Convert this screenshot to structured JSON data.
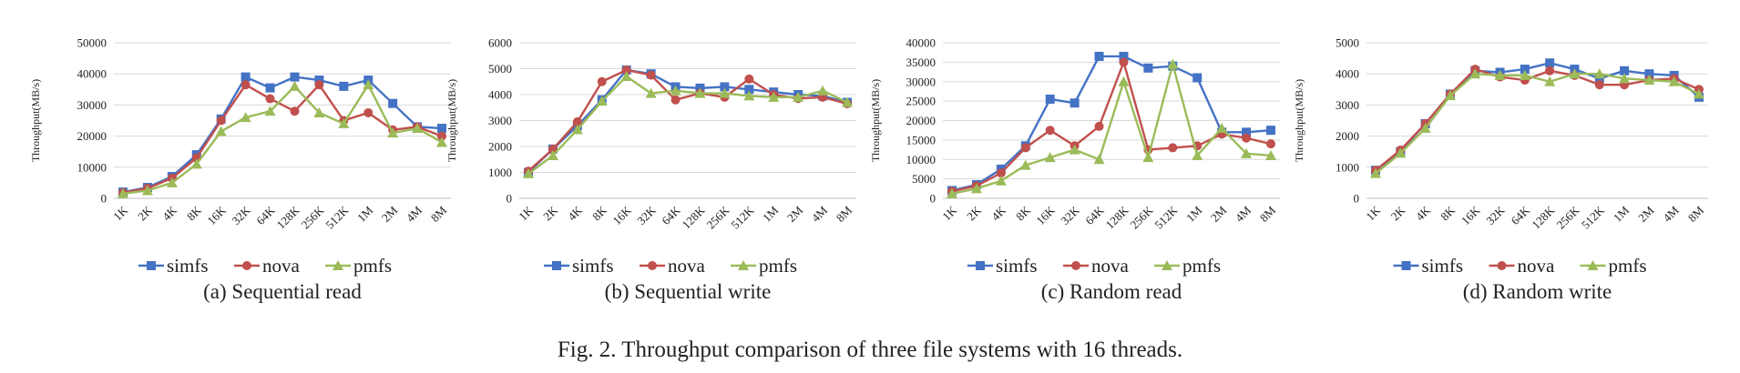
{
  "figure_caption": "Fig. 2.  Throughput comparison of three file systems with 16 threads.",
  "colors": {
    "simfs": "#4472c4",
    "nova": "#c0504d",
    "pmfs": "#9bbb59",
    "grid": "#d9d9d9",
    "axis": "#bfbfbf"
  },
  "chart_data": [
    {
      "type": "line",
      "caption": "(a)  Sequential read",
      "ylabel": "Throughput(MB/s)",
      "categories": [
        "1K",
        "2K",
        "4K",
        "8K",
        "16K",
        "32K",
        "64K",
        "128K",
        "256K",
        "512K",
        "1M",
        "2M",
        "4M",
        "8M"
      ],
      "ylim": [
        0,
        50000
      ],
      "yticks": [
        0,
        10000,
        20000,
        30000,
        40000,
        50000
      ],
      "grid": true,
      "legend": "bottom",
      "series": [
        {
          "name": "simfs",
          "marker": "square",
          "values": [
            2000,
            3500,
            7000,
            14000,
            25500,
            39000,
            35500,
            39000,
            38000,
            36000,
            38000,
            30500,
            23000,
            22500
          ]
        },
        {
          "name": "nova",
          "marker": "circle",
          "values": [
            1800,
            3200,
            6500,
            13000,
            25000,
            36500,
            32000,
            28000,
            36500,
            25000,
            27500,
            22000,
            23000,
            20000
          ]
        },
        {
          "name": "pmfs",
          "marker": "triangle",
          "values": [
            1500,
            2500,
            5000,
            11000,
            21500,
            26000,
            28000,
            36000,
            27500,
            24000,
            36500,
            21000,
            22500,
            18000
          ]
        }
      ]
    },
    {
      "type": "line",
      "caption": "(b)  Sequential write",
      "ylabel": "Throughput(MB/s)",
      "categories": [
        "1K",
        "2K",
        "4K",
        "8K",
        "16K",
        "32K",
        "64K",
        "128K",
        "256K",
        "512K",
        "1M",
        "2M",
        "4M",
        "8M"
      ],
      "ylim": [
        0,
        6000
      ],
      "yticks": [
        0,
        1000,
        2000,
        3000,
        4000,
        5000,
        6000
      ],
      "grid": true,
      "legend": "bottom",
      "series": [
        {
          "name": "simfs",
          "marker": "square",
          "values": [
            1000,
            1900,
            2800,
            3800,
            4950,
            4800,
            4300,
            4250,
            4300,
            4200,
            4100,
            4000,
            3950,
            3700
          ]
        },
        {
          "name": "nova",
          "marker": "circle",
          "values": [
            1050,
            1900,
            2950,
            4500,
            4950,
            4750,
            3800,
            4050,
            3900,
            4600,
            4000,
            3850,
            3900,
            3650
          ]
        },
        {
          "name": "pmfs",
          "marker": "triangle",
          "values": [
            950,
            1650,
            2650,
            3750,
            4700,
            4050,
            4150,
            4050,
            4050,
            3950,
            3900,
            3900,
            4150,
            3700
          ]
        }
      ]
    },
    {
      "type": "line",
      "caption": "(c)  Random read",
      "ylabel": "Throughput(MB/s)",
      "categories": [
        "1K",
        "2K",
        "4K",
        "8K",
        "16K",
        "32K",
        "64K",
        "128K",
        "256K",
        "512K",
        "1M",
        "2M",
        "4M",
        "8M"
      ],
      "ylim": [
        0,
        40000
      ],
      "yticks": [
        0,
        5000,
        10000,
        15000,
        20000,
        25000,
        30000,
        35000,
        40000
      ],
      "grid": true,
      "legend": "bottom",
      "series": [
        {
          "name": "simfs",
          "marker": "square",
          "values": [
            2000,
            3500,
            7500,
            13500,
            25500,
            24500,
            36500,
            36500,
            33500,
            34000,
            31000,
            17000,
            17000,
            17500
          ]
        },
        {
          "name": "nova",
          "marker": "circle",
          "values": [
            1800,
            3200,
            6500,
            13000,
            17500,
            13500,
            18500,
            35000,
            12500,
            13000,
            13500,
            16500,
            15500,
            14000
          ]
        },
        {
          "name": "pmfs",
          "marker": "triangle",
          "values": [
            1200,
            2500,
            4500,
            8500,
            10500,
            12500,
            10000,
            30000,
            10500,
            34500,
            11000,
            18000,
            11500,
            11000
          ]
        }
      ]
    },
    {
      "type": "line",
      "caption": "(d)  Random write",
      "ylabel": "Throughput(MB/s)",
      "categories": [
        "1K",
        "2K",
        "4K",
        "8K",
        "16K",
        "32K",
        "64K",
        "128K",
        "256K",
        "512K",
        "1M",
        "2M",
        "4M",
        "8M"
      ],
      "ylim": [
        0,
        5000
      ],
      "yticks": [
        0,
        1000,
        2000,
        3000,
        4000,
        5000
      ],
      "grid": true,
      "legend": "bottom",
      "series": [
        {
          "name": "simfs",
          "marker": "square",
          "values": [
            900,
            1500,
            2400,
            3350,
            4100,
            4050,
            4150,
            4350,
            4150,
            3850,
            4100,
            4000,
            3950,
            3250
          ]
        },
        {
          "name": "nova",
          "marker": "circle",
          "values": [
            900,
            1550,
            2400,
            3350,
            4150,
            3900,
            3800,
            4100,
            3950,
            3650,
            3650,
            3800,
            3850,
            3500
          ]
        },
        {
          "name": "pmfs",
          "marker": "triangle",
          "values": [
            800,
            1450,
            2250,
            3300,
            4000,
            3950,
            3950,
            3750,
            4000,
            4000,
            3850,
            3800,
            3750,
            3350
          ]
        }
      ]
    }
  ]
}
